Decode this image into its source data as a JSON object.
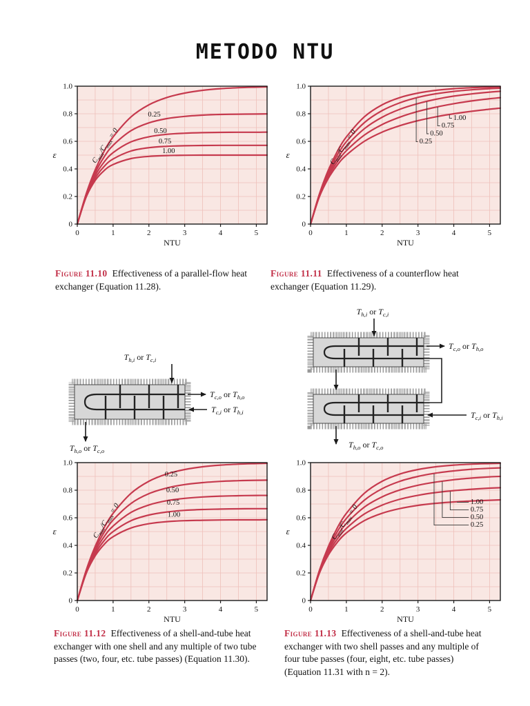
{
  "page": {
    "title": "METODO NTU"
  },
  "colors": {
    "curve": "#c63a4e",
    "plot_bg": "#f9e7e3",
    "grid": "#eec0ba",
    "figure_label": "#c23048",
    "axis": "#1a1a1a"
  },
  "figures": [
    {
      "label": "Figure 11.10",
      "caption": "Effectiveness of a parallel-flow heat exchanger (Equation 11.28)."
    },
    {
      "label": "Figure 11.11",
      "caption": "Effectiveness of a counterflow heat exchanger (Equation 11.29)."
    },
    {
      "label": "Figure 11.12",
      "caption": "Effectiveness of a shell-and-tube heat exchanger with one shell and any multiple of two tube passes (two, four, etc. tube passes) (Equation 11.30)."
    },
    {
      "label": "Figure 11.13",
      "caption": "Effectiveness of a shell-and-tube heat exchanger with two shell passes and any multiple of four tube passes (four, eight, etc. tube passes) (Equation 11.31 with n = 2)."
    }
  ],
  "chart_data": [
    {
      "type": "line",
      "title": "Figure 11.10",
      "xlabel": "NTU",
      "ylabel": "ε",
      "xlim": [
        0,
        5.3
      ],
      "ylim": [
        0,
        1
      ],
      "xticks": [
        0,
        1,
        2,
        3,
        4,
        5
      ],
      "yticks": [
        0,
        0.2,
        0.4,
        0.6,
        0.8,
        1
      ],
      "grid": true,
      "x": [
        0,
        0.25,
        0.5,
        0.75,
        1,
        1.5,
        2,
        2.5,
        3,
        3.5,
        4,
        4.5,
        5,
        5.3
      ],
      "series": [
        {
          "name": "Cmin/Cmax = 0",
          "values": [
            0,
            0.221,
            0.393,
            0.528,
            0.632,
            0.777,
            0.865,
            0.918,
            0.95,
            0.97,
            0.982,
            0.989,
            0.993,
            0.995
          ]
        },
        {
          "name": "0.25",
          "values": [
            0,
            0.215,
            0.372,
            0.487,
            0.571,
            0.677,
            0.734,
            0.765,
            0.781,
            0.79,
            0.795,
            0.797,
            0.798,
            0.799
          ]
        },
        {
          "name": "0.50",
          "values": [
            0,
            0.209,
            0.352,
            0.45,
            0.518,
            0.596,
            0.633,
            0.651,
            0.659,
            0.663,
            0.665,
            0.666,
            0.666,
            0.667
          ]
        },
        {
          "name": "0.75",
          "values": [
            0,
            0.203,
            0.333,
            0.418,
            0.472,
            0.53,
            0.554,
            0.564,
            0.568,
            0.57,
            0.571,
            0.571,
            0.571,
            0.571
          ]
        },
        {
          "name": "1.00",
          "values": [
            0,
            0.197,
            0.316,
            0.388,
            0.432,
            0.475,
            0.491,
            0.497,
            0.499,
            0.5,
            0.5,
            0.5,
            0.5,
            0.5
          ]
        }
      ],
      "annotations": [
        {
          "text": "C_{min}/C_{max} = 0",
          "x": 0.82,
          "y": 0.56,
          "rotate": -56,
          "italic": true
        },
        {
          "text": "0.25",
          "x": 2.15,
          "y": 0.78
        },
        {
          "text": "0.50",
          "x": 2.32,
          "y": 0.66
        },
        {
          "text": "0.75",
          "x": 2.45,
          "y": 0.585
        },
        {
          "text": "1.00",
          "x": 2.55,
          "y": 0.515
        }
      ]
    },
    {
      "type": "line",
      "title": "Figure 11.11",
      "xlabel": "NTU",
      "ylabel": "ε",
      "xlim": [
        0,
        5.3
      ],
      "ylim": [
        0,
        1
      ],
      "xticks": [
        0,
        1,
        2,
        3,
        4,
        5
      ],
      "yticks": [
        0,
        0.2,
        0.4,
        0.6,
        0.8,
        1
      ],
      "grid": true,
      "x": [
        0,
        0.25,
        0.5,
        0.75,
        1,
        1.5,
        2,
        2.5,
        3,
        3.5,
        4,
        4.5,
        5,
        5.3
      ],
      "series": [
        {
          "name": "Cmin/Cmax = 0",
          "values": [
            0,
            0.221,
            0.393,
            0.528,
            0.632,
            0.777,
            0.865,
            0.918,
            0.95,
            0.97,
            0.982,
            0.989,
            0.993,
            0.995
          ]
        },
        {
          "name": "0.25",
          "values": [
            0,
            0.216,
            0.378,
            0.502,
            0.598,
            0.735,
            0.823,
            0.88,
            0.919,
            0.945,
            0.962,
            0.974,
            0.982,
            0.985
          ]
        },
        {
          "name": "0.50",
          "values": [
            0,
            0.21,
            0.362,
            0.476,
            0.565,
            0.691,
            0.775,
            0.833,
            0.874,
            0.905,
            0.928,
            0.944,
            0.957,
            0.963
          ]
        },
        {
          "name": "0.75",
          "values": [
            0,
            0.205,
            0.348,
            0.452,
            0.532,
            0.645,
            0.722,
            0.776,
            0.817,
            0.848,
            0.873,
            0.893,
            0.909,
            0.917
          ]
        },
        {
          "name": "1.00",
          "values": [
            0,
            0.2,
            0.333,
            0.429,
            0.5,
            0.6,
            0.667,
            0.714,
            0.75,
            0.778,
            0.8,
            0.818,
            0.833,
            0.841
          ]
        }
      ],
      "annotations": [
        {
          "text": "C_{min}/C_{max} = 0",
          "x": 0.95,
          "y": 0.55,
          "rotate": -56,
          "italic": true
        },
        {
          "text": "0.25",
          "x": 3.04,
          "y": 0.585,
          "anchor": "start"
        },
        {
          "text": "0.50",
          "x": 3.34,
          "y": 0.643,
          "anchor": "start"
        },
        {
          "text": "0.75",
          "x": 3.66,
          "y": 0.7,
          "anchor": "start"
        },
        {
          "text": "1.00",
          "x": 3.99,
          "y": 0.756,
          "anchor": "start"
        }
      ],
      "leaders": [
        {
          "points": [
            [
              3.0,
              0.597
            ],
            [
              2.95,
              0.597
            ],
            [
              2.95,
              0.913
            ]
          ]
        },
        {
          "points": [
            [
              3.3,
              0.655
            ],
            [
              3.25,
              0.655
            ],
            [
              3.25,
              0.888
            ]
          ]
        },
        {
          "points": [
            [
              3.62,
              0.712
            ],
            [
              3.55,
              0.712
            ],
            [
              3.55,
              0.849
            ]
          ]
        },
        {
          "points": [
            [
              3.95,
              0.768
            ],
            [
              3.88,
              0.768
            ],
            [
              3.88,
              0.793
            ]
          ]
        }
      ]
    },
    {
      "type": "line",
      "title": "Figure 11.12",
      "xlabel": "NTU",
      "ylabel": "ε",
      "xlim": [
        0,
        5.3
      ],
      "ylim": [
        0,
        1
      ],
      "xticks": [
        0,
        1,
        2,
        3,
        4,
        5
      ],
      "yticks": [
        0,
        0.2,
        0.4,
        0.6,
        0.8,
        1
      ],
      "grid": true,
      "x": [
        0,
        0.25,
        0.5,
        0.75,
        1,
        1.5,
        2,
        2.5,
        3,
        3.5,
        4,
        4.5,
        5,
        5.3
      ],
      "series": [
        {
          "name": "Cmin/Cmax = 0",
          "values": [
            0,
            0.221,
            0.393,
            0.528,
            0.632,
            0.777,
            0.865,
            0.918,
            0.95,
            0.97,
            0.982,
            0.989,
            0.993,
            0.995
          ]
        },
        {
          "name": "0.25",
          "values": [
            0,
            0.215,
            0.375,
            0.494,
            0.584,
            0.704,
            0.775,
            0.816,
            0.841,
            0.855,
            0.864,
            0.869,
            0.872,
            0.873
          ]
        },
        {
          "name": "0.50",
          "values": [
            0,
            0.209,
            0.357,
            0.463,
            0.54,
            0.639,
            0.693,
            0.724,
            0.741,
            0.751,
            0.757,
            0.76,
            0.762,
            0.762
          ]
        },
        {
          "name": "0.75",
          "values": [
            0,
            0.204,
            0.34,
            0.434,
            0.5,
            0.579,
            0.62,
            0.642,
            0.654,
            0.66,
            0.663,
            0.665,
            0.666,
            0.666
          ]
        },
        {
          "name": "1.00",
          "values": [
            0,
            0.198,
            0.324,
            0.407,
            0.463,
            0.526,
            0.557,
            0.572,
            0.579,
            0.582,
            0.584,
            0.585,
            0.585,
            0.586
          ]
        }
      ],
      "annotations": [
        {
          "text": "C_{min}/C_{max} = 0",
          "x": 0.85,
          "y": 0.57,
          "rotate": -56,
          "italic": true
        },
        {
          "text": "0.25",
          "x": 2.62,
          "y": 0.9
        },
        {
          "text": "0.50",
          "x": 2.66,
          "y": 0.785
        },
        {
          "text": "0.75",
          "x": 2.68,
          "y": 0.695
        },
        {
          "text": "1.00",
          "x": 2.7,
          "y": 0.607
        }
      ]
    },
    {
      "type": "line",
      "title": "Figure 11.13",
      "xlabel": "NTU",
      "ylabel": "ε",
      "xlim": [
        0,
        5.3
      ],
      "ylim": [
        0,
        1
      ],
      "xticks": [
        0,
        1,
        2,
        3,
        4,
        5
      ],
      "yticks": [
        0,
        0.2,
        0.4,
        0.6,
        0.8,
        1
      ],
      "grid": true,
      "x": [
        0,
        0.25,
        0.5,
        0.75,
        1,
        1.5,
        2,
        2.5,
        3,
        3.5,
        4,
        4.5,
        5,
        5.3
      ],
      "series": [
        {
          "name": "Cmin/Cmax = 0",
          "values": [
            0,
            0.221,
            0.393,
            0.528,
            0.632,
            0.777,
            0.865,
            0.918,
            0.95,
            0.97,
            0.982,
            0.989,
            0.993,
            0.995
          ]
        },
        {
          "name": "0.25",
          "values": [
            0,
            0.216,
            0.377,
            0.5,
            0.595,
            0.727,
            0.811,
            0.865,
            0.9,
            0.924,
            0.94,
            0.952,
            0.959,
            0.962
          ]
        },
        {
          "name": "0.50",
          "values": [
            0,
            0.21,
            0.361,
            0.473,
            0.558,
            0.677,
            0.752,
            0.802,
            0.836,
            0.859,
            0.876,
            0.888,
            0.897,
            0.9
          ]
        },
        {
          "name": "0.75",
          "values": [
            0,
            0.205,
            0.346,
            0.447,
            0.523,
            0.627,
            0.692,
            0.735,
            0.763,
            0.783,
            0.797,
            0.807,
            0.815,
            0.818
          ]
        },
        {
          "name": "1.00",
          "values": [
            0,
            0.2,
            0.331,
            0.423,
            0.49,
            0.579,
            0.633,
            0.667,
            0.69,
            0.705,
            0.715,
            0.722,
            0.727,
            0.73
          ]
        }
      ],
      "annotations": [
        {
          "text": "C_{min}/C_{max} = 0",
          "x": 1.0,
          "y": 0.56,
          "rotate": -56,
          "italic": true
        },
        {
          "text": "1.00",
          "x": 4.47,
          "y": 0.7,
          "anchor": "start"
        },
        {
          "text": "0.75",
          "x": 4.47,
          "y": 0.645,
          "anchor": "start"
        },
        {
          "text": "0.50",
          "x": 4.47,
          "y": 0.59,
          "anchor": "start"
        },
        {
          "text": "0.25",
          "x": 4.47,
          "y": 0.535,
          "anchor": "start"
        }
      ],
      "leaders": [
        {
          "points": [
            [
              4.42,
              0.712
            ],
            [
              4.1,
              0.712
            ],
            [
              4.1,
              0.716
            ]
          ]
        },
        {
          "points": [
            [
              4.42,
              0.657
            ],
            [
              3.9,
              0.657
            ],
            [
              3.9,
              0.792
            ]
          ]
        },
        {
          "points": [
            [
              4.42,
              0.602
            ],
            [
              3.68,
              0.602
            ],
            [
              3.68,
              0.863
            ]
          ]
        },
        {
          "points": [
            [
              4.42,
              0.547
            ],
            [
              3.45,
              0.547
            ],
            [
              3.45,
              0.92
            ]
          ]
        }
      ]
    }
  ],
  "diagrams": {
    "one_shell": {
      "top_label": "T_{h,i} or T_{c,i}",
      "right_top_label": "T_{c,o} or T_{h,o}",
      "right_bottom_label": "T_{c,i} or T_{h,i}",
      "bottom_label": "T_{h,o} or T_{c,o}"
    },
    "two_shell": {
      "top_label": "T_{h,i} or T_{c,i}",
      "right_top_label": "T_{c,o} or T_{h,o}",
      "right_bottom_label": "T_{c,i} or T_{h,i}",
      "bottom_label": "T_{h,o} or T_{c,o}"
    }
  }
}
